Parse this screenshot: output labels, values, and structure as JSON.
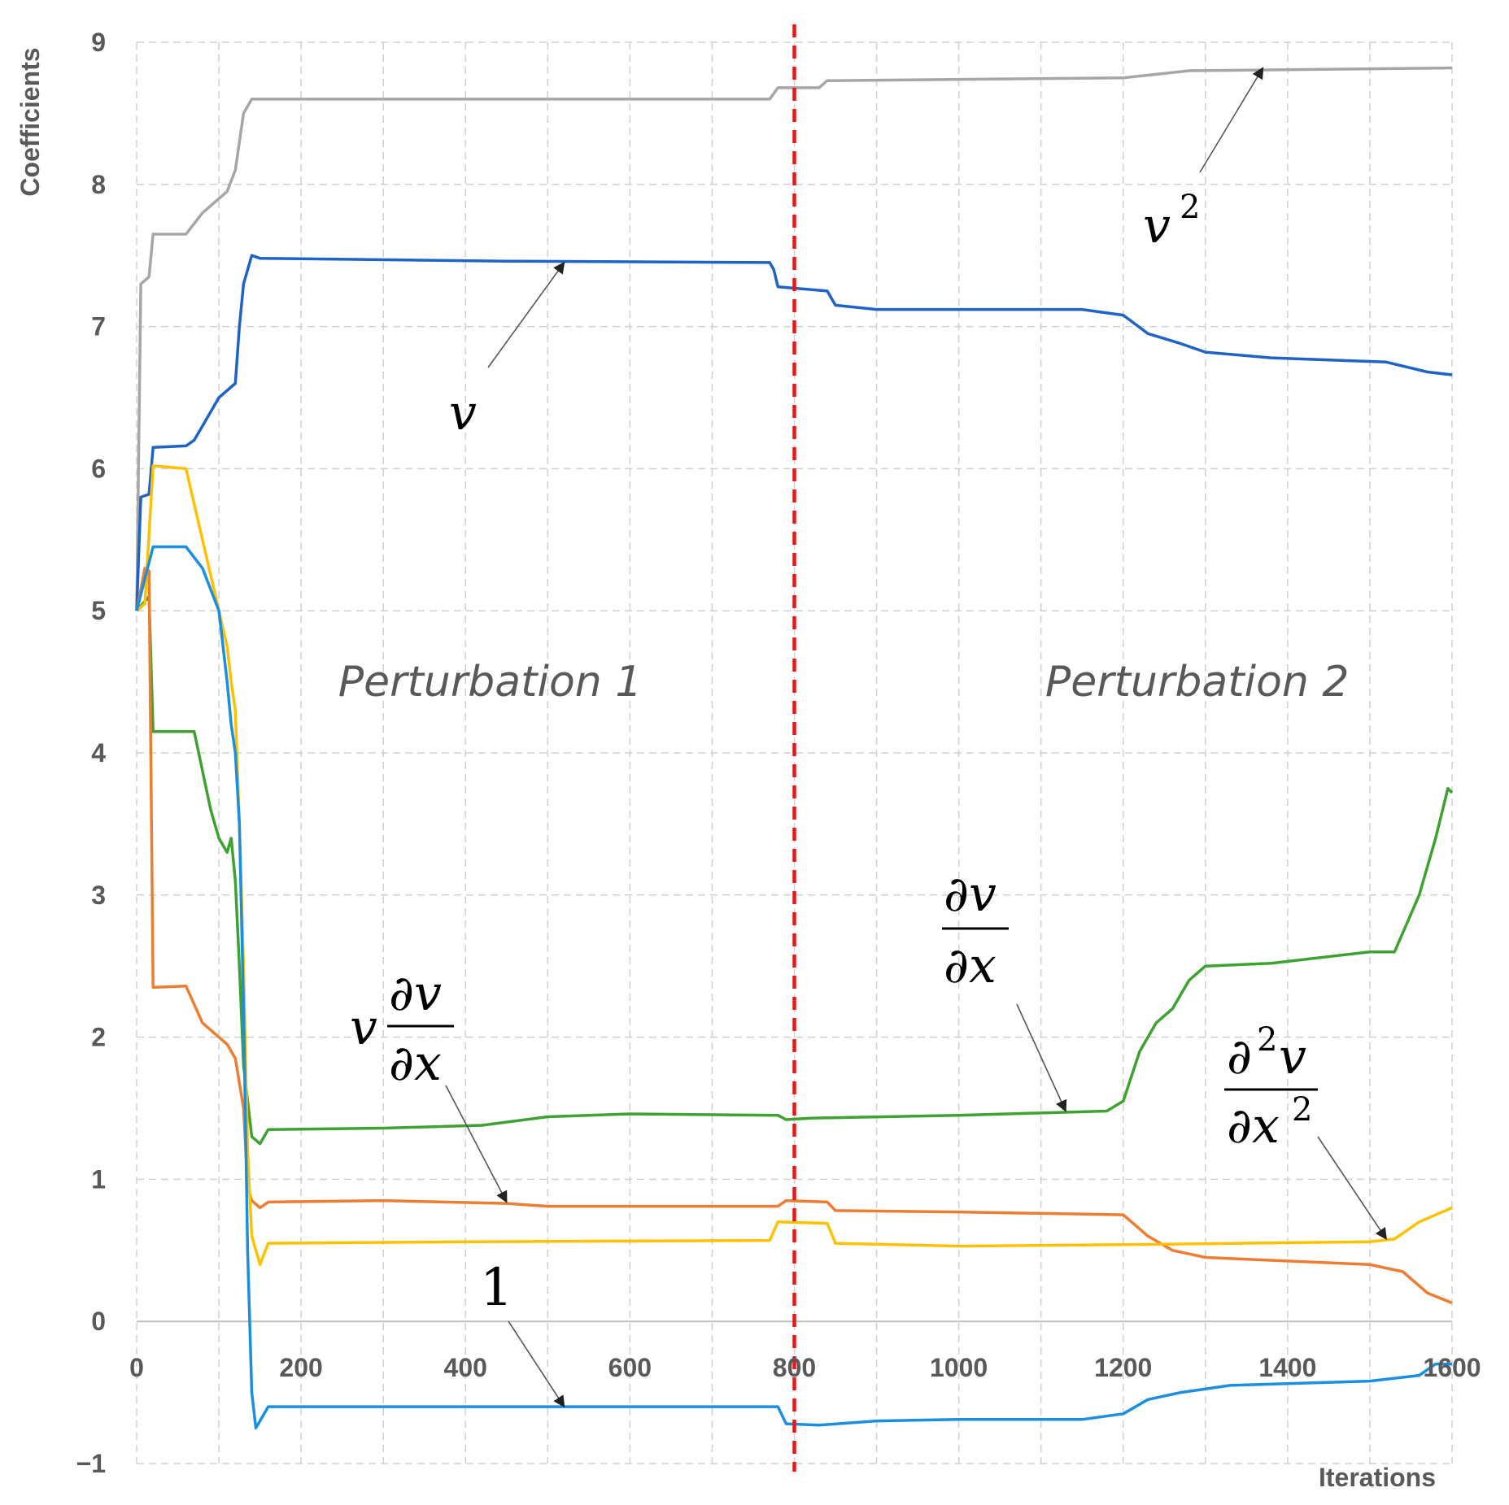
{
  "chart_data": {
    "type": "line",
    "title": "",
    "xlabel": "Iterations",
    "ylabel": "Coefficients",
    "xlim": [
      0,
      1600
    ],
    "ylim": [
      -1,
      9
    ],
    "x_ticks": [
      0,
      200,
      400,
      600,
      800,
      1000,
      1200,
      1400,
      1600
    ],
    "y_ticks": [
      -1,
      0,
      1,
      2,
      3,
      4,
      5,
      6,
      7,
      8,
      9
    ],
    "y_tick_labels": [
      "−1",
      "0",
      "1",
      "2",
      "3",
      "4",
      "5",
      "6",
      "7",
      "8",
      "9"
    ],
    "grid": true,
    "legend": "none",
    "divider": {
      "x": 800,
      "color": "#e31a1c",
      "style": "dashed"
    },
    "regions": [
      {
        "label": "Perturbation 1",
        "x": 430,
        "y": 4.4
      },
      {
        "label": "Perturbation 2",
        "x": 1290,
        "y": 4.4
      }
    ],
    "series": [
      {
        "name": "v^2",
        "color": "#a6a6a6",
        "points": [
          [
            0,
            5.0
          ],
          [
            4,
            6.8
          ],
          [
            5,
            7.3
          ],
          [
            15,
            7.35
          ],
          [
            20,
            7.65
          ],
          [
            60,
            7.65
          ],
          [
            80,
            7.8
          ],
          [
            100,
            7.9
          ],
          [
            110,
            7.95
          ],
          [
            120,
            8.1
          ],
          [
            130,
            8.5
          ],
          [
            140,
            8.6
          ],
          [
            160,
            8.6
          ],
          [
            400,
            8.6
          ],
          [
            770,
            8.6
          ],
          [
            780,
            8.68
          ],
          [
            830,
            8.68
          ],
          [
            840,
            8.73
          ],
          [
            1200,
            8.75
          ],
          [
            1280,
            8.8
          ],
          [
            1600,
            8.82
          ]
        ]
      },
      {
        "name": "v",
        "color": "#1f63c6",
        "points": [
          [
            0,
            5.0
          ],
          [
            5,
            5.8
          ],
          [
            15,
            5.82
          ],
          [
            20,
            6.15
          ],
          [
            60,
            6.16
          ],
          [
            70,
            6.2
          ],
          [
            80,
            6.3
          ],
          [
            100,
            6.5
          ],
          [
            120,
            6.6
          ],
          [
            125,
            7.0
          ],
          [
            130,
            7.3
          ],
          [
            140,
            7.5
          ],
          [
            150,
            7.48
          ],
          [
            450,
            7.46
          ],
          [
            770,
            7.45
          ],
          [
            775,
            7.4
          ],
          [
            780,
            7.28
          ],
          [
            840,
            7.25
          ],
          [
            850,
            7.15
          ],
          [
            900,
            7.12
          ],
          [
            1000,
            7.12
          ],
          [
            1150,
            7.12
          ],
          [
            1200,
            7.08
          ],
          [
            1230,
            6.95
          ],
          [
            1270,
            6.88
          ],
          [
            1300,
            6.82
          ],
          [
            1380,
            6.78
          ],
          [
            1520,
            6.75
          ],
          [
            1570,
            6.68
          ],
          [
            1600,
            6.66
          ]
        ]
      },
      {
        "name": "dv/dx",
        "color": "#3da22f",
        "points": [
          [
            0,
            5.0
          ],
          [
            15,
            5.1
          ],
          [
            20,
            4.15
          ],
          [
            70,
            4.15
          ],
          [
            90,
            3.6
          ],
          [
            100,
            3.4
          ],
          [
            110,
            3.3
          ],
          [
            115,
            3.4
          ],
          [
            120,
            3.1
          ],
          [
            125,
            2.5
          ],
          [
            130,
            1.8
          ],
          [
            140,
            1.3
          ],
          [
            150,
            1.25
          ],
          [
            160,
            1.35
          ],
          [
            300,
            1.36
          ],
          [
            420,
            1.38
          ],
          [
            500,
            1.44
          ],
          [
            600,
            1.46
          ],
          [
            780,
            1.45
          ],
          [
            790,
            1.42
          ],
          [
            820,
            1.43
          ],
          [
            1000,
            1.45
          ],
          [
            1180,
            1.48
          ],
          [
            1200,
            1.55
          ],
          [
            1220,
            1.9
          ],
          [
            1240,
            2.1
          ],
          [
            1260,
            2.2
          ],
          [
            1280,
            2.4
          ],
          [
            1300,
            2.5
          ],
          [
            1380,
            2.52
          ],
          [
            1500,
            2.6
          ],
          [
            1530,
            2.6
          ],
          [
            1560,
            3.0
          ],
          [
            1580,
            3.4
          ],
          [
            1595,
            3.75
          ],
          [
            1600,
            3.72
          ]
        ]
      },
      {
        "name": "v dv/dx",
        "color": "#ed7d31",
        "points": [
          [
            0,
            5.0
          ],
          [
            10,
            5.3
          ],
          [
            15,
            5.28
          ],
          [
            20,
            2.35
          ],
          [
            60,
            2.36
          ],
          [
            80,
            2.1
          ],
          [
            100,
            2.0
          ],
          [
            110,
            1.95
          ],
          [
            120,
            1.85
          ],
          [
            130,
            1.5
          ],
          [
            135,
            0.95
          ],
          [
            140,
            0.85
          ],
          [
            150,
            0.8
          ],
          [
            160,
            0.84
          ],
          [
            300,
            0.85
          ],
          [
            450,
            0.83
          ],
          [
            500,
            0.81
          ],
          [
            780,
            0.81
          ],
          [
            790,
            0.85
          ],
          [
            840,
            0.84
          ],
          [
            850,
            0.78
          ],
          [
            1000,
            0.77
          ],
          [
            1200,
            0.75
          ],
          [
            1230,
            0.6
          ],
          [
            1260,
            0.5
          ],
          [
            1300,
            0.45
          ],
          [
            1500,
            0.4
          ],
          [
            1540,
            0.35
          ],
          [
            1570,
            0.2
          ],
          [
            1600,
            0.13
          ]
        ]
      },
      {
        "name": "d2v/dx2",
        "color": "#ffc000",
        "points": [
          [
            0,
            5.0
          ],
          [
            10,
            5.05
          ],
          [
            20,
            6.02
          ],
          [
            60,
            6.0
          ],
          [
            80,
            5.5
          ],
          [
            100,
            5.0
          ],
          [
            110,
            4.75
          ],
          [
            115,
            4.5
          ],
          [
            120,
            4.3
          ],
          [
            125,
            3.5
          ],
          [
            130,
            2.5
          ],
          [
            135,
            1.2
          ],
          [
            140,
            0.6
          ],
          [
            150,
            0.4
          ],
          [
            160,
            0.55
          ],
          [
            400,
            0.56
          ],
          [
            770,
            0.57
          ],
          [
            780,
            0.7
          ],
          [
            840,
            0.69
          ],
          [
            850,
            0.55
          ],
          [
            1000,
            0.53
          ],
          [
            1200,
            0.54
          ],
          [
            1500,
            0.56
          ],
          [
            1530,
            0.58
          ],
          [
            1560,
            0.7
          ],
          [
            1600,
            0.8
          ]
        ]
      },
      {
        "name": "1",
        "color": "#1b8fdf",
        "points": [
          [
            0,
            5.0
          ],
          [
            20,
            5.45
          ],
          [
            60,
            5.45
          ],
          [
            80,
            5.3
          ],
          [
            100,
            5.0
          ],
          [
            110,
            4.5
          ],
          [
            115,
            4.2
          ],
          [
            120,
            4.0
          ],
          [
            125,
            3.5
          ],
          [
            130,
            2.2
          ],
          [
            135,
            0.5
          ],
          [
            140,
            -0.5
          ],
          [
            145,
            -0.75
          ],
          [
            150,
            -0.7
          ],
          [
            160,
            -0.6
          ],
          [
            400,
            -0.6
          ],
          [
            780,
            -0.6
          ],
          [
            790,
            -0.72
          ],
          [
            830,
            -0.73
          ],
          [
            900,
            -0.7
          ],
          [
            1000,
            -0.69
          ],
          [
            1150,
            -0.69
          ],
          [
            1200,
            -0.65
          ],
          [
            1230,
            -0.55
          ],
          [
            1270,
            -0.5
          ],
          [
            1330,
            -0.45
          ],
          [
            1500,
            -0.42
          ],
          [
            1560,
            -0.38
          ],
          [
            1580,
            -0.3
          ],
          [
            1600,
            -0.3
          ]
        ]
      }
    ],
    "annotations": [
      {
        "label": "v^2",
        "target": [
          1370,
          8.82
        ]
      },
      {
        "label": "v",
        "target": [
          520,
          7.45
        ]
      },
      {
        "label": "dv/dx",
        "target": [
          1130,
          1.48
        ]
      },
      {
        "label": "v dv/dx",
        "target": [
          450,
          0.84
        ]
      },
      {
        "label": "d2v/dx2",
        "target": [
          1520,
          0.58
        ]
      },
      {
        "label": "1",
        "target": [
          520,
          -0.6
        ]
      }
    ]
  }
}
